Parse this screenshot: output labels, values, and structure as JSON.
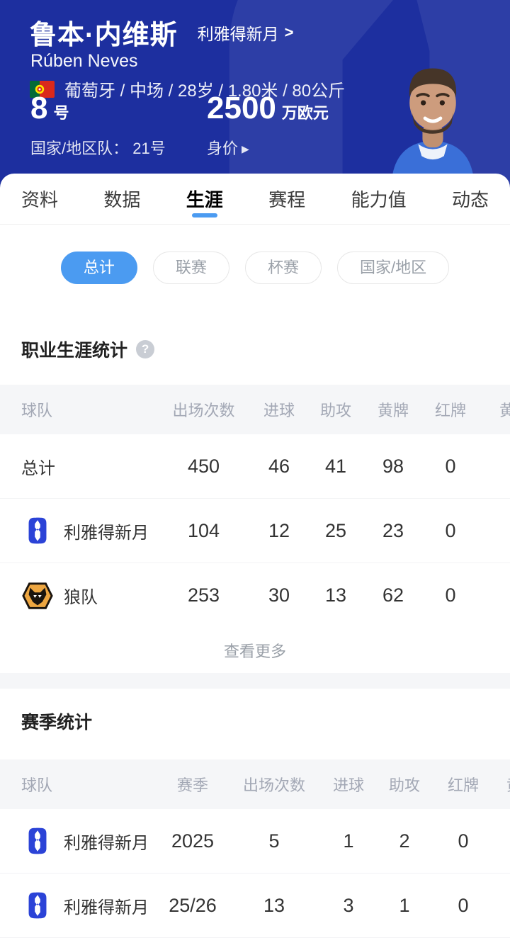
{
  "header": {
    "name_cn": "鲁本·内维斯",
    "name_en": "Rúben Neves",
    "club_name": "利雅得新月",
    "club_chevron": ">",
    "info_line": "葡萄牙 / 中场 / 28岁 / 1.80米 / 80公斤",
    "shirt_number": "8",
    "shirt_number_suffix": "号",
    "national_team_line": "国家/地区队： 21号",
    "market_value": "2500",
    "market_value_unit": "万欧元",
    "market_value_label": "身价",
    "market_value_arrow": "▶",
    "flag_icon": "portugal-flag",
    "colors": {
      "header_bg": "#1d2f9f",
      "accent_blue": "#4b9bf1",
      "alhilal_logo_blue": "#2b43d7",
      "wolves_gold": "#eda641"
    }
  },
  "tabs": [
    {
      "label": "资料",
      "active": false
    },
    {
      "label": "数据",
      "active": false
    },
    {
      "label": "生涯",
      "active": true
    },
    {
      "label": "赛程",
      "active": false
    },
    {
      "label": "能力值",
      "active": false
    },
    {
      "label": "动态",
      "active": false
    }
  ],
  "filters": [
    {
      "label": "总计",
      "active": true
    },
    {
      "label": "联赛",
      "active": false
    },
    {
      "label": "杯赛",
      "active": false
    },
    {
      "label": "国家/地区",
      "active": false
    }
  ],
  "career_section": {
    "title": "职业生涯统计",
    "help_icon": "?",
    "columns": [
      "球队",
      "出场次数",
      "进球",
      "助攻",
      "黄牌",
      "红牌",
      "黄牌"
    ],
    "rows": [
      {
        "team": "总计",
        "logo": "none",
        "values": [
          "450",
          "46",
          "41",
          "98",
          "0",
          ""
        ]
      },
      {
        "team": "利雅得新月",
        "logo": "al-hilal",
        "values": [
          "104",
          "12",
          "25",
          "23",
          "0",
          ""
        ]
      },
      {
        "team": "狼队",
        "logo": "wolves",
        "values": [
          "253",
          "30",
          "13",
          "62",
          "0",
          ""
        ]
      }
    ],
    "more_label": "查看更多"
  },
  "season_section": {
    "title": "赛季统计",
    "columns": [
      "球队",
      "赛季",
      "出场次数",
      "进球",
      "助攻",
      "红牌",
      "黄牌"
    ],
    "rows": [
      {
        "team": "利雅得新月",
        "logo": "al-hilal",
        "values": [
          "2025",
          "5",
          "1",
          "2",
          "0",
          ""
        ]
      },
      {
        "team": "利雅得新月",
        "logo": "al-hilal",
        "values": [
          "25/26",
          "13",
          "3",
          "1",
          "0",
          ""
        ]
      }
    ]
  }
}
